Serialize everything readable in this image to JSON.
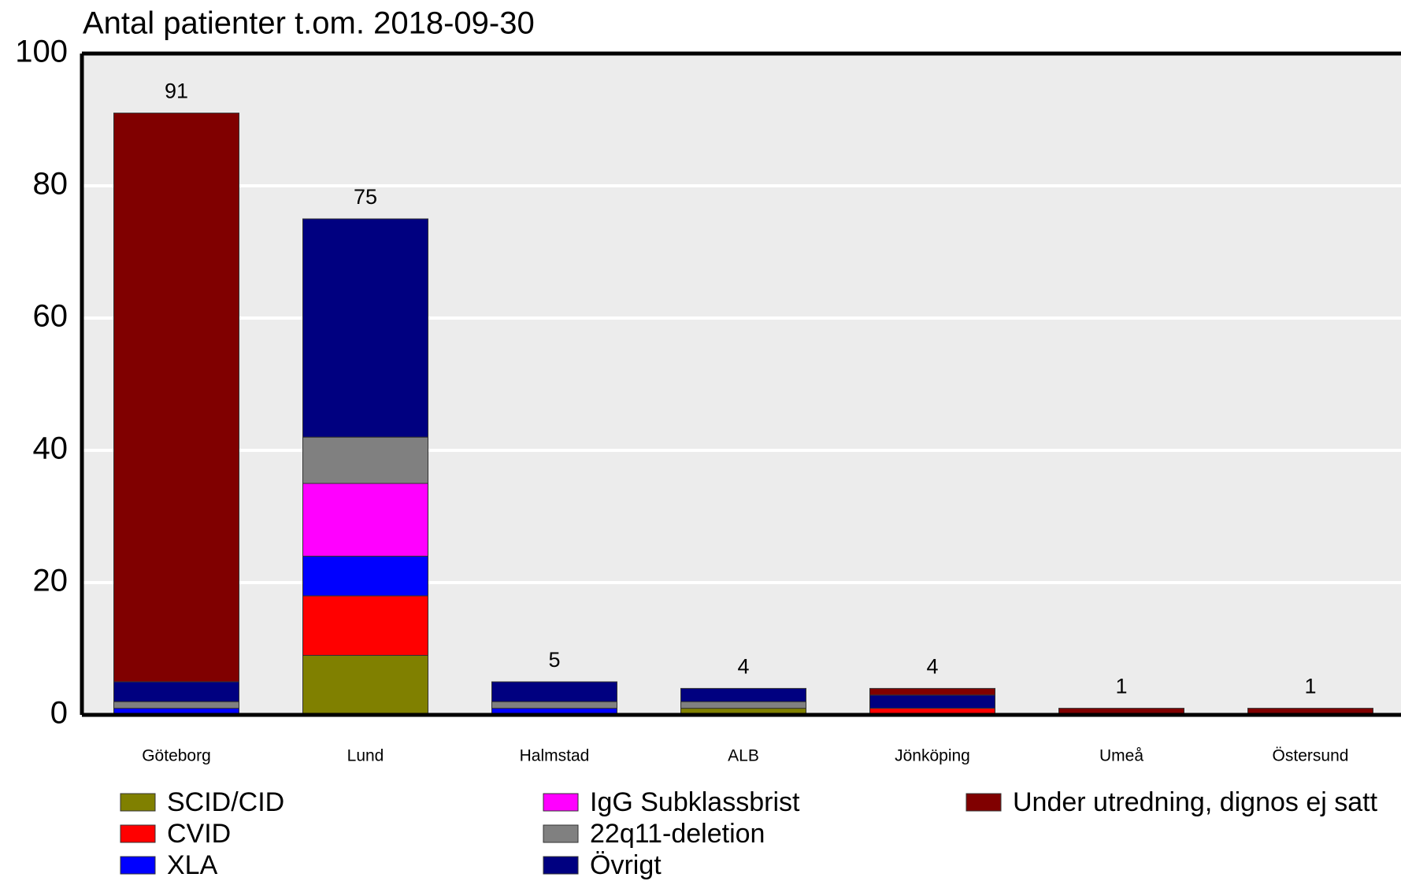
{
  "chart_data": {
    "type": "stacked_bar",
    "title": "Antal patienter t.om. 2018-09-30",
    "categories": [
      "Göteborg",
      "Lund",
      "Halmstad",
      "ALB",
      "Jönköping",
      "Umeå",
      "Östersund"
    ],
    "series": [
      {
        "name": "SCID/CID",
        "color": "#808000",
        "values": [
          0,
          9,
          0,
          1,
          0,
          0,
          0
        ]
      },
      {
        "name": "CVID",
        "color": "#ff0000",
        "values": [
          0,
          9,
          0,
          0,
          1,
          0,
          0
        ]
      },
      {
        "name": "XLA",
        "color": "#0000ff",
        "values": [
          1,
          6,
          1,
          0,
          0,
          0,
          0
        ]
      },
      {
        "name": "IgG Subklassbrist",
        "color": "#ff00ff",
        "values": [
          0,
          11,
          0,
          0,
          0,
          0,
          0
        ]
      },
      {
        "name": "22q11-deletion",
        "color": "#808080",
        "values": [
          1,
          7,
          1,
          1,
          0,
          0,
          0
        ]
      },
      {
        "name": "Övrigt",
        "color": "#000080",
        "values": [
          3,
          33,
          3,
          2,
          2,
          0,
          0
        ]
      },
      {
        "name": "Under utredning, dignos ej satt",
        "color": "#800000",
        "values": [
          86,
          0,
          0,
          0,
          1,
          1,
          1
        ]
      }
    ],
    "totals": [
      91,
      75,
      5,
      4,
      4,
      1,
      1
    ],
    "ylim": [
      0,
      100
    ],
    "yticks": [
      0,
      20,
      40,
      60,
      80,
      100
    ],
    "grid": true
  }
}
